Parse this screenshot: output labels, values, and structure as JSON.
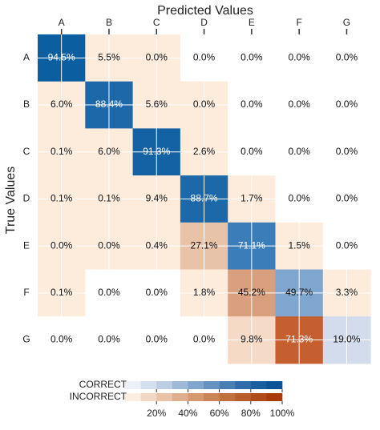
{
  "chart_data": {
    "type": "heatmap",
    "title": "Predicted Values",
    "y_label": "True Values",
    "x_categories": [
      "A",
      "B",
      "C",
      "D",
      "E",
      "F",
      "G"
    ],
    "y_categories": [
      "A",
      "B",
      "C",
      "D",
      "E",
      "F",
      "G"
    ],
    "values": [
      [
        94.5,
        5.5,
        0.0,
        0.0,
        0.0,
        0.0,
        0.0
      ],
      [
        6.0,
        88.4,
        5.6,
        0.0,
        0.0,
        0.0,
        0.0
      ],
      [
        0.1,
        6.0,
        91.3,
        2.6,
        0.0,
        0.0,
        0.0
      ],
      [
        0.1,
        0.1,
        9.4,
        88.7,
        1.7,
        0.0,
        0.0
      ],
      [
        0.0,
        0.0,
        0.4,
        27.1,
        71.1,
        1.5,
        0.0
      ],
      [
        0.1,
        0.0,
        0.0,
        1.8,
        45.2,
        49.7,
        3.3
      ],
      [
        0.0,
        0.0,
        0.0,
        0.0,
        9.8,
        71.3,
        19.0
      ]
    ],
    "value_labels": [
      [
        "94.5%",
        "5.5%",
        "0.0%",
        "0.0%",
        "0.0%",
        "0.0%",
        "0.0%"
      ],
      [
        "6.0%",
        "88.4%",
        "5.6%",
        "0.0%",
        "0.0%",
        "0.0%",
        "0.0%"
      ],
      [
        "0.1%",
        "6.0%",
        "91.3%",
        "2.6%",
        "0.0%",
        "0.0%",
        "0.0%"
      ],
      [
        "0.1%",
        "0.1%",
        "9.4%",
        "88.7%",
        "1.7%",
        "0.0%",
        "0.0%"
      ],
      [
        "0.0%",
        "0.0%",
        "0.4%",
        "27.1%",
        "71.1%",
        "1.5%",
        "0.0%"
      ],
      [
        "0.1%",
        "0.0%",
        "0.0%",
        "1.8%",
        "45.2%",
        "49.7%",
        "3.3%"
      ],
      [
        "0.0%",
        "0.0%",
        "0.0%",
        "0.0%",
        "9.8%",
        "71.3%",
        "19.0%"
      ]
    ],
    "colors": [
      [
        "#0b5ea0",
        "#fdebdc",
        "#fdebdc",
        "#ffffff",
        "#ffffff",
        "#ffffff",
        "#ffffff"
      ],
      [
        "#fdebdc",
        "#1c68a8",
        "#fdebdc",
        "#fdebdc",
        "#ffffff",
        "#ffffff",
        "#ffffff"
      ],
      [
        "#fdebdc",
        "#fdebdc",
        "#1462a3",
        "#fdebdc",
        "#ffffff",
        "#ffffff",
        "#ffffff"
      ],
      [
        "#fdebdc",
        "#fdebdc",
        "#fdebdc",
        "#1c68a8",
        "#fdebdc",
        "#ffffff",
        "#ffffff"
      ],
      [
        "#fdebdc",
        "#fdebdc",
        "#fdebdc",
        "#e9c3a8",
        "#3b7db8",
        "#fdebdc",
        "#ffffff"
      ],
      [
        "#fdebdc",
        "#ffffff",
        "#ffffff",
        "#fdebdc",
        "#d9a07f",
        "#7fa6cf",
        "#fdebdc"
      ],
      [
        "#ffffff",
        "#ffffff",
        "#ffffff",
        "#ffffff",
        "#f5dac7",
        "#c55f30",
        "#d3dcec"
      ]
    ],
    "colorbar": {
      "labels": [
        "CORRECT",
        "INCORRECT"
      ],
      "palettes": [
        [
          "#eef0f7",
          "#d6dfee",
          "#bccde4",
          "#9fb9d9",
          "#82a5cd",
          "#6692c2",
          "#4a7fb6",
          "#306caa",
          "#1a5e9f",
          "#0b5394"
        ],
        [
          "#fdeee2",
          "#f3d6c3",
          "#e9c2a7",
          "#dfae8c",
          "#d59970",
          "#cb8457",
          "#c06f3f",
          "#b75e2c",
          "#ae4b19",
          "#a93a0a"
        ]
      ],
      "xlim": [
        0,
        100
      ],
      "xticks": [
        {
          "value": 20,
          "label": "20%"
        },
        {
          "value": 40,
          "label": "40%"
        },
        {
          "value": 60,
          "label": "60%"
        },
        {
          "value": 80,
          "label": "80%"
        },
        {
          "value": 100,
          "label": "100%"
        }
      ]
    }
  }
}
